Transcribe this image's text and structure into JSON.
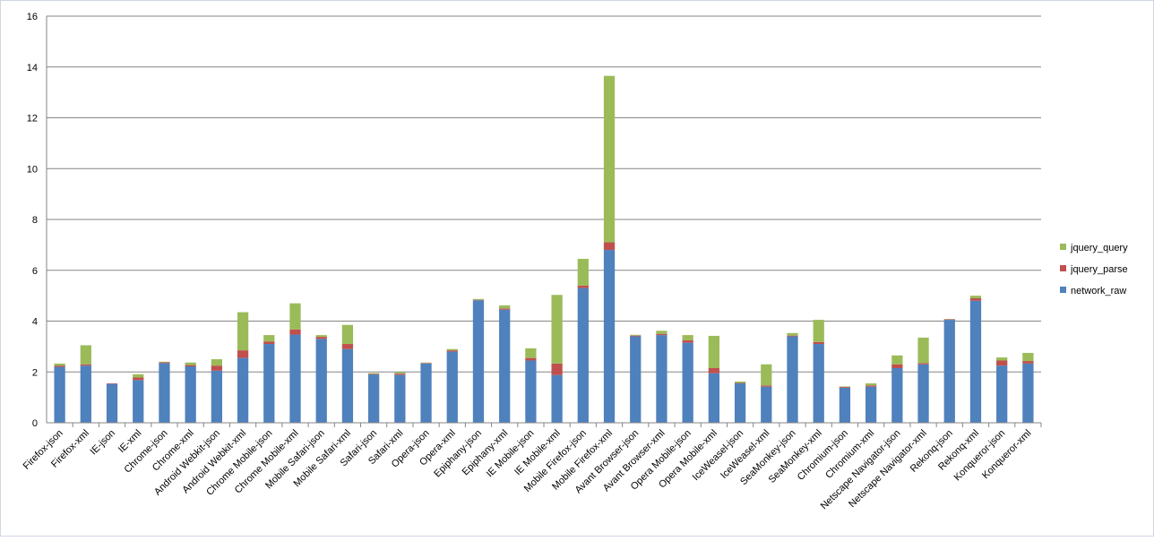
{
  "chart_data": {
    "type": "stacked_bar",
    "categories": [
      "Firefox-json",
      "Firefox-xml",
      "IE-json",
      "IE-xml",
      "Chrome-json",
      "Chrome-xml",
      "Android Webkit-json",
      "Android Webkit-xml",
      "Chrome Mobile-json",
      "Chrome Mobile-xml",
      "Mobile Safari-json",
      "Mobile Safari-xml",
      "Safari-json",
      "Safari-xml",
      "Opera-json",
      "Opera-xml",
      "Epiphany-json",
      "Epiphany-xml",
      "IE Mobile-json",
      "IE Mobile-xml",
      "Mobile Firefox-json",
      "Mobile Firefox-xml",
      "Avant Browser-json",
      "Avant Browser-xml",
      "Opera Mobile-json",
      "Opera Mobile-xml",
      "IceWeasel-json",
      "IceWeasel-xml",
      "SeaMonkey-json",
      "SeaMonkey-xml",
      "Chromium-json",
      "Chromium-xml",
      "Netscape Navigator-json",
      "Netscape Navigator-xml",
      "Rekonq-json",
      "Rekonq-xml",
      "Konqueror-json",
      "Konqueror-xml"
    ],
    "series": [
      {
        "name": "network_raw",
        "color": "#4f81bd",
        "values": [
          2.2,
          2.25,
          1.53,
          1.68,
          2.35,
          2.22,
          2.05,
          2.55,
          3.1,
          3.47,
          3.3,
          2.9,
          1.9,
          1.88,
          2.33,
          2.8,
          4.82,
          4.45,
          2.45,
          1.88,
          5.3,
          6.8,
          3.4,
          3.45,
          3.15,
          1.95,
          1.55,
          1.42,
          3.4,
          3.1,
          1.38,
          1.42,
          2.15,
          2.3,
          4.05,
          4.8,
          2.25,
          2.33
        ]
      },
      {
        "name": "jquery_parse",
        "color": "#c0504d",
        "values": [
          0.05,
          0.05,
          0.02,
          0.1,
          0.03,
          0.05,
          0.2,
          0.3,
          0.1,
          0.2,
          0.08,
          0.2,
          0.02,
          0.05,
          0.02,
          0.05,
          0.02,
          0.05,
          0.1,
          0.45,
          0.1,
          0.3,
          0.03,
          0.05,
          0.1,
          0.2,
          0.02,
          0.05,
          0.03,
          0.08,
          0.03,
          0.05,
          0.15,
          0.05,
          0.02,
          0.1,
          0.2,
          0.1
        ]
      },
      {
        "name": "jquery_query",
        "color": "#9bbb59",
        "values": [
          0.08,
          0.75,
          0,
          0.13,
          0.02,
          0.1,
          0.25,
          1.5,
          0.25,
          1.03,
          0.07,
          0.75,
          0.03,
          0.05,
          0.02,
          0.05,
          0.03,
          0.12,
          0.38,
          2.7,
          1.05,
          6.55,
          0.03,
          0.12,
          0.2,
          1.27,
          0.05,
          0.83,
          0.1,
          0.87,
          0.02,
          0.08,
          0.35,
          1.0,
          0.01,
          0.1,
          0.12,
          0.32
        ]
      }
    ],
    "ylim": [
      0,
      16
    ],
    "yticks": [
      0,
      2,
      4,
      6,
      8,
      10,
      12,
      14,
      16
    ],
    "grid": true,
    "legend": "right"
  }
}
